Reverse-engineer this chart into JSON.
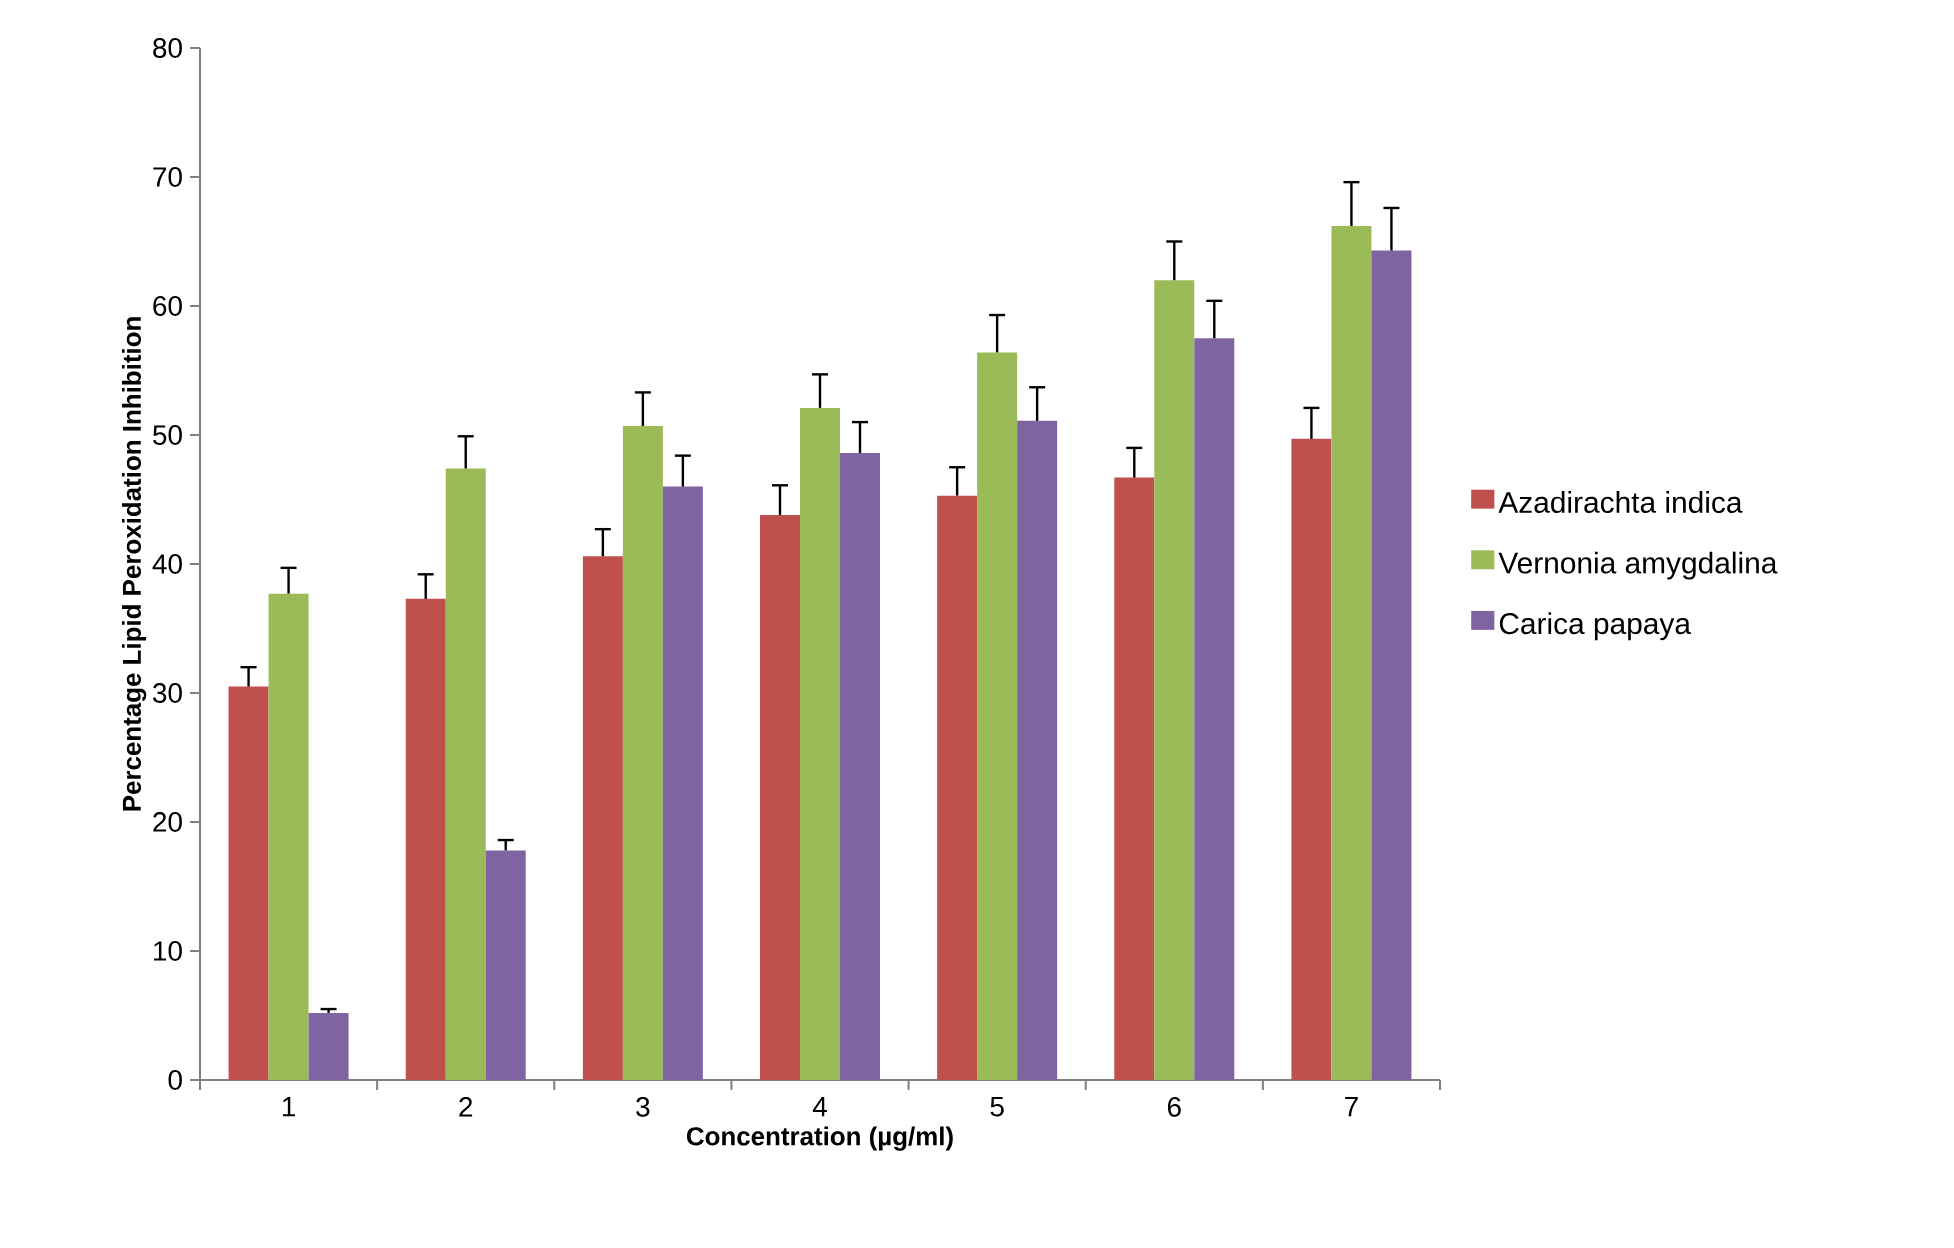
{
  "chart_data": {
    "type": "bar",
    "xlabel": "Concentration (µg/ml)",
    "ylabel": "Percentage Lipid Peroxidation Inhibition",
    "categories": [
      "1",
      "2",
      "3",
      "4",
      "5",
      "6",
      "7"
    ],
    "series": [
      {
        "name": "Azadirachta indica",
        "color": "#c0504d",
        "values": [
          30.5,
          37.3,
          40.6,
          43.8,
          45.3,
          46.7,
          49.7
        ],
        "errors": [
          [
            30.5,
            32.0
          ],
          [
            37.3,
            39.2
          ],
          [
            40.6,
            42.7
          ],
          [
            43.8,
            46.1
          ],
          [
            45.3,
            47.5
          ],
          [
            46.7,
            49.0
          ],
          [
            49.7,
            52.1
          ]
        ]
      },
      {
        "name": "Vernonia amygdalina",
        "color": "#9bbb59",
        "values": [
          37.7,
          47.4,
          50.7,
          52.1,
          56.4,
          62.0,
          66.2
        ],
        "errors": [
          [
            37.7,
            39.7
          ],
          [
            47.4,
            49.9
          ],
          [
            50.7,
            53.3
          ],
          [
            52.1,
            54.7
          ],
          [
            56.4,
            59.3
          ],
          [
            62.0,
            65.0
          ],
          [
            66.2,
            69.6
          ]
        ]
      },
      {
        "name": "Carica papaya",
        "color": "#8064a2",
        "values": [
          5.2,
          17.8,
          46.0,
          48.6,
          51.1,
          57.5,
          64.3
        ],
        "errors": [
          [
            5.2,
            5.5
          ],
          [
            17.8,
            18.6
          ],
          [
            46.0,
            48.4
          ],
          [
            48.6,
            51.0
          ],
          [
            51.1,
            53.7
          ],
          [
            57.5,
            60.4
          ],
          [
            64.3,
            67.6
          ]
        ]
      }
    ],
    "ylim": [
      0,
      80
    ],
    "yticks": [
      0,
      10,
      20,
      30,
      40,
      50,
      60,
      70,
      80
    ],
    "legend": "right",
    "grid": false
  }
}
